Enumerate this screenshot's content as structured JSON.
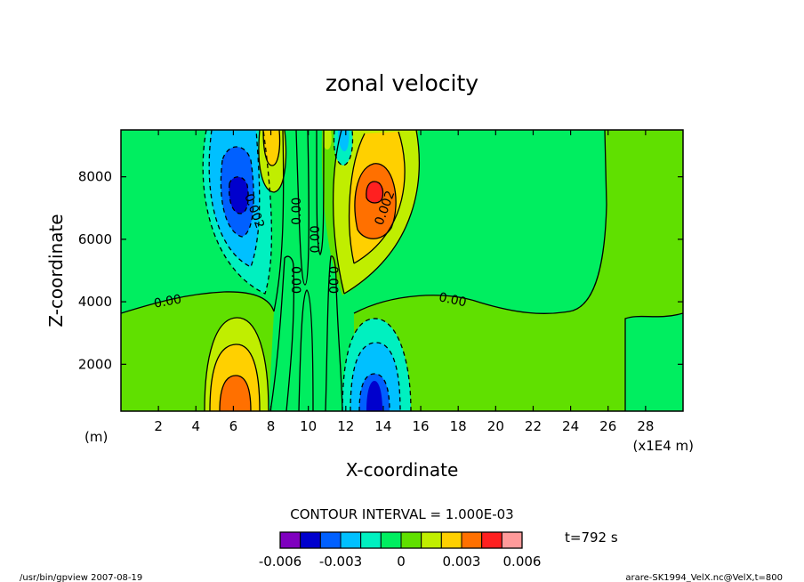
{
  "chart_data": {
    "type": "contour",
    "title": "zonal velocity",
    "xlabel": "X-coordinate",
    "ylabel": "Z-coordinate",
    "x_unit_left": "(m)",
    "x_unit_right": "(x1E4 m)",
    "xlim": [
      0,
      30
    ],
    "ylim": [
      500,
      9500
    ],
    "x_ticks": [
      2,
      4,
      6,
      8,
      10,
      12,
      14,
      16,
      18,
      20,
      22,
      24,
      26,
      28
    ],
    "x_tick_labels": [
      "2",
      "4",
      "6",
      "8",
      "10",
      "12",
      "14",
      "16",
      "18",
      "20",
      "22",
      "24",
      "26",
      "28"
    ],
    "y_ticks": [
      2000,
      4000,
      6000,
      8000
    ],
    "y_tick_labels": [
      "2000",
      "4000",
      "6000",
      "8000"
    ],
    "grid": false,
    "contour_interval_text": "CONTOUR INTERVAL = 1.000E-03",
    "time_text": "t=792 s",
    "contour_labels": [
      {
        "text": "0.00",
        "x": 2.5,
        "y": 4000,
        "angle": -10
      },
      {
        "text": "0.00",
        "x": 17.7,
        "y": 4050,
        "angle": 12
      },
      {
        "text": "0.00",
        "x": 9.4,
        "y": 6900,
        "angle": -90
      },
      {
        "text": "0.00",
        "x": 10.4,
        "y": 6000,
        "angle": -90
      },
      {
        "text": "0.00",
        "x": 9.3,
        "y": 4700,
        "angle": 90
      },
      {
        "text": "0.00",
        "x": 11.3,
        "y": 4700,
        "angle": 90
      },
      {
        "text": "0.002",
        "x": 7.1,
        "y": 6900,
        "angle": 70
      },
      {
        "text": "0.002",
        "x": 14.1,
        "y": 7000,
        "angle": -70
      }
    ],
    "colorbar": {
      "colors": [
        "#7f00bf",
        "#0000cd",
        "#0060ff",
        "#00c0ff",
        "#00f0c0",
        "#00ee60",
        "#60e000",
        "#c0ee00",
        "#ffd000",
        "#ff7000",
        "#ff2020",
        "#ff9a9a"
      ],
      "tick_labels": [
        "-0.006",
        "-0.003",
        "0",
        "0.003",
        "0.006"
      ],
      "tick_values": [
        -0.006,
        -0.003,
        0,
        0.003,
        0.006
      ],
      "range": [
        -0.006,
        0.006
      ]
    },
    "colors": {
      "background_field": "#00ee60",
      "weak_positive": "#60e000",
      "positive": "#c0ee00",
      "moderate_positive": "#ffd000",
      "strong_positive": "#ff7000",
      "max_positive": "#ff2020",
      "weak_negative": "#00f0c0",
      "negative": "#00c0ff",
      "moderate_negative": "#0060ff",
      "strong_negative": "#0000cd"
    }
  },
  "footer": {
    "left": "/usr/bin/gpview  2007-08-19",
    "right": "arare-SK1994_VelX.nc@VelX,t=800"
  }
}
